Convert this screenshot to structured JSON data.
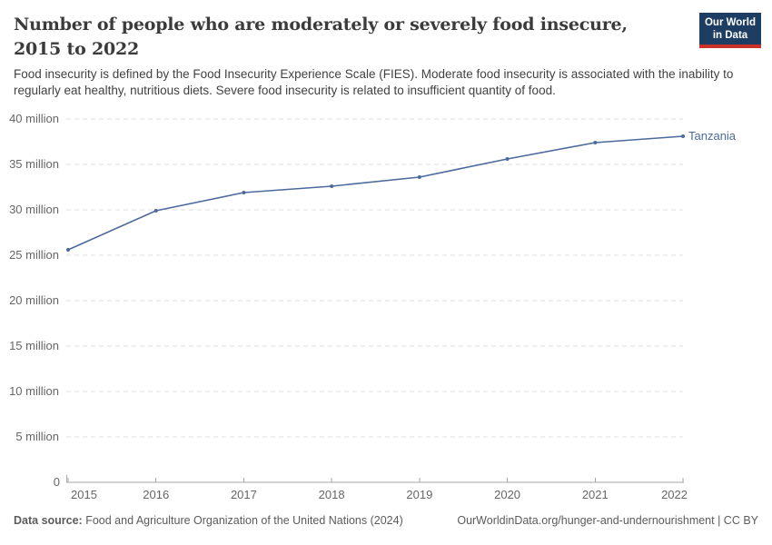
{
  "header": {
    "title_line1": "Number of people who are moderately or severely food insecure,",
    "title_line2": "2015 to 2022",
    "subtitle": "Food insecurity is defined by the Food Insecurity Experience Scale (FIES). Moderate food insecurity is associated with the inability to regularly eat healthy, nutritious diets. Severe food insecurity is related to insufficient quantity of food.",
    "logo": {
      "line1": "Our World",
      "line2": "in Data"
    }
  },
  "footer": {
    "datasource_label": "Data source:",
    "datasource_text": "Food and Agriculture Organization of the United Nations (2024)",
    "link_text": "OurWorldinData.org/hunger-and-undernourishment | CC BY"
  },
  "colors": {
    "line": "#4c6a9c",
    "grid": "#dddddd",
    "axis": "#a5a5a5",
    "tick_text": "#666666",
    "logo_navy": "#1d3d63",
    "logo_red": "#cb3129"
  },
  "chart_data": {
    "type": "line",
    "title": "Number of people who are moderately or severely food insecure, 2015 to 2022",
    "x": [
      2015,
      2016,
      2017,
      2018,
      2019,
      2020,
      2021,
      2022
    ],
    "series": [
      {
        "name": "Tanzania",
        "color": "#4c6a9c",
        "values": [
          25.6,
          29.9,
          31.9,
          32.6,
          33.6,
          35.6,
          37.4,
          38.1
        ]
      }
    ],
    "unit": "million",
    "ylim": [
      0,
      40
    ],
    "yticks": [
      {
        "value": 0,
        "label": "0"
      },
      {
        "value": 5,
        "label": "5 million"
      },
      {
        "value": 10,
        "label": "10 million"
      },
      {
        "value": 15,
        "label": "15 million"
      },
      {
        "value": 20,
        "label": "20 million"
      },
      {
        "value": 25,
        "label": "25 million"
      },
      {
        "value": 30,
        "label": "30 million"
      },
      {
        "value": 35,
        "label": "35 million"
      },
      {
        "value": 40,
        "label": "40 million"
      }
    ],
    "grid": true,
    "legend_position": "end-of-line",
    "end_label": "Tanzania"
  }
}
